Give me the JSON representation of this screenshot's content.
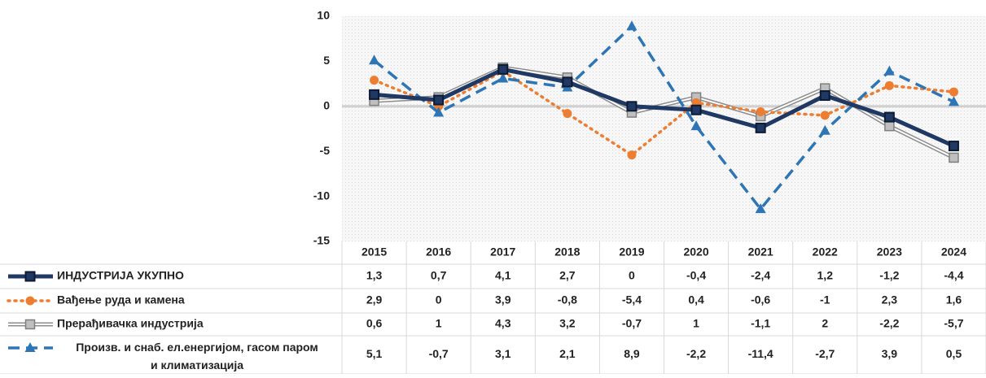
{
  "chart_data": {
    "type": "line",
    "categories": [
      "2015",
      "2016",
      "2017",
      "2018",
      "2019",
      "2020",
      "2021",
      "2022",
      "2023",
      "2024"
    ],
    "ylim": [
      -15,
      10
    ],
    "yticks": [
      10,
      5,
      0,
      -5,
      -10,
      -15
    ],
    "grid": false,
    "series": [
      {
        "name": "ИНДУСТРИЈА УКУПНО",
        "color": "#1f3864",
        "style": "solid",
        "marker": "square",
        "values": [
          1.3,
          0.7,
          4.1,
          2.7,
          0,
          -0.4,
          -2.4,
          1.2,
          -1.2,
          -4.4
        ],
        "value_labels": [
          "1,3",
          "0,7",
          "4,1",
          "2,7",
          "0",
          "-0,4",
          "-2,4",
          "1,2",
          "-1,2",
          "-4,4"
        ]
      },
      {
        "name": "Вађење руда и камена",
        "color": "#ed7d31",
        "style": "dotted",
        "marker": "circle",
        "values": [
          2.9,
          0,
          3.9,
          -0.8,
          -5.4,
          0.4,
          -0.6,
          -1,
          2.3,
          1.6
        ],
        "value_labels": [
          "2,9",
          "0",
          "3,9",
          "-0,8",
          "-5,4",
          "0,4",
          "-0,6",
          "-1",
          "2,3",
          "1,6"
        ]
      },
      {
        "name": "Прерађивачка индустрија",
        "color": "#a5a5a5",
        "style": "double",
        "marker": "square",
        "values": [
          0.6,
          1,
          4.3,
          3.2,
          -0.7,
          1,
          -1.1,
          2,
          -2.2,
          -5.7
        ],
        "value_labels": [
          "0,6",
          "1",
          "4,3",
          "3,2",
          "-0,7",
          "1",
          "-1,1",
          "2",
          "-2,2",
          "-5,7"
        ]
      },
      {
        "name": "Произв. и снаб. ел.енергијом, гасом паром и климатизација",
        "color": "#2e75b6",
        "style": "dashed",
        "marker": "triangle",
        "values": [
          5.1,
          -0.7,
          3.1,
          2.1,
          8.9,
          -2.2,
          -11.4,
          -2.7,
          3.9,
          0.5
        ],
        "value_labels": [
          "5,1",
          "-0,7",
          "3,1",
          "2,1",
          "8,9",
          "-2,2",
          "-11,4",
          "-2,7",
          "3,9",
          "0,5"
        ]
      }
    ]
  }
}
